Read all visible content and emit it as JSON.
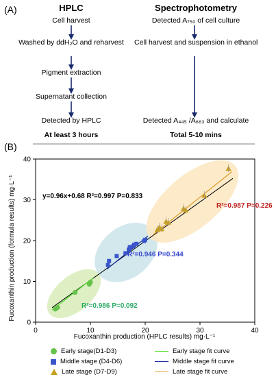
{
  "panel_a": {
    "label": "(A)",
    "hplc": {
      "title": "HPLC",
      "steps": [
        "Cell harvest",
        "Washed by ddH₂O and reharvest",
        "Pigment extraction",
        "Supernatant collection",
        "Detected by HPLC"
      ],
      "time": "At least 3 hours"
    },
    "spectro": {
      "title": "Spectrophotometry",
      "steps": [
        "Detected A₇₅₀ of cell culture",
        "Cell harvest and suspension in ethanol",
        "Detected A₄₄₅ /A₆₆₃ and calculate"
      ],
      "time": "Total 5-10 mins"
    }
  },
  "panel_b": {
    "label": "(B)",
    "colors": {
      "early": "#66c24a",
      "middle": "#3a55cc",
      "late": "#c8a020",
      "early_fit": "#55dd33",
      "middle_fit": "#1a2a99",
      "late_fit": "#e0a030",
      "overall_fit": "#000000"
    }
  },
  "chart_data": {
    "type": "scatter",
    "xlabel": "Fucoxanthin production (HPLC results) mg·L⁻¹",
    "ylabel": "Fucoxanthin production (formula results) mg·L⁻¹",
    "xlim": [
      0,
      40
    ],
    "ylim": [
      0,
      40
    ],
    "xticks": [
      "0",
      "10",
      "20",
      "30",
      "40"
    ],
    "yticks": [
      "0",
      "10",
      "20",
      "30",
      "40"
    ],
    "series": [
      {
        "name": "Early stage(D1-D3)",
        "marker": "circle",
        "points": [
          [
            3.6,
            3.2
          ],
          [
            4.0,
            3.6
          ],
          [
            7.2,
            7.3
          ],
          [
            9.8,
            9.3
          ],
          [
            10.0,
            9.8
          ]
        ]
      },
      {
        "name": "Middle stage (D4-D6)",
        "marker": "square",
        "points": [
          [
            13.2,
            14.0
          ],
          [
            13.4,
            15.0
          ],
          [
            14.8,
            16.2
          ],
          [
            16.4,
            16.9
          ],
          [
            17.0,
            17.8
          ],
          [
            17.2,
            18.4
          ],
          [
            17.8,
            18.6
          ],
          [
            18.0,
            19.0
          ],
          [
            18.4,
            19.2
          ],
          [
            19.8,
            19.9
          ],
          [
            20.0,
            20.2
          ]
        ]
      },
      {
        "name": "Late stage (D7-D9)",
        "marker": "triangle",
        "points": [
          [
            22.2,
            22.6
          ],
          [
            22.6,
            23.2
          ],
          [
            23.0,
            22.8
          ],
          [
            23.8,
            24.6
          ],
          [
            24.2,
            24.4
          ],
          [
            27.0,
            27.8
          ],
          [
            27.4,
            27.4
          ],
          [
            30.8,
            31.0
          ],
          [
            35.2,
            37.6
          ]
        ]
      }
    ],
    "fits": [
      {
        "name": "Early stage fit curve",
        "range": [
          3,
          10.5
        ]
      },
      {
        "name": "Middle stage fit curve",
        "range": [
          13,
          20.5
        ]
      },
      {
        "name": "Late stage fit curve",
        "range": [
          21.5,
          35.8
        ]
      }
    ],
    "annotations": {
      "overall": "y=0.96x+0.68  R²=0.997   P=0.833",
      "early": "R²=0.986  P=0.092",
      "middle": "R²=0.946  P=0.344",
      "late": "R²=0.987  P=0.226"
    },
    "grid": false,
    "legend_position": "bottom"
  }
}
